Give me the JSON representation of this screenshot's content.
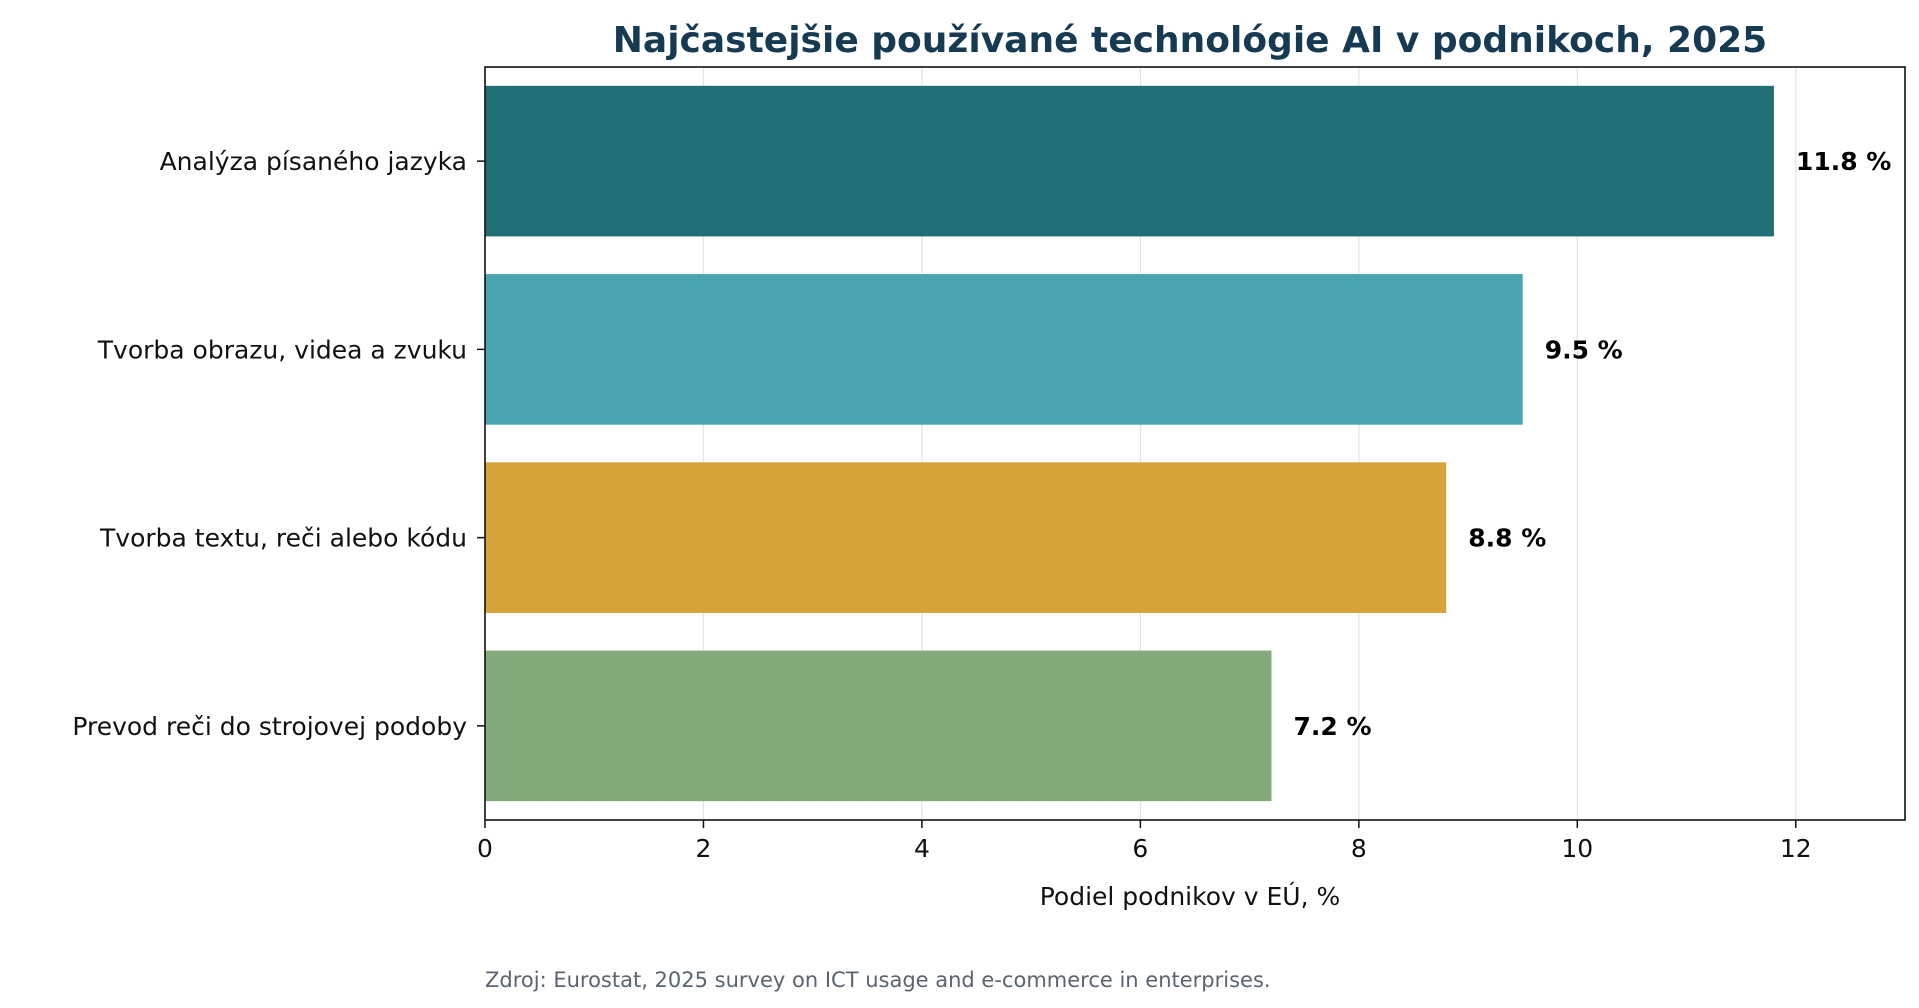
{
  "chart_data": {
    "type": "bar",
    "orientation": "horizontal",
    "title": "Najčastejšie používané technológie AI v podnikoch, 2025",
    "xlabel": "Podiel podnikov v EÚ, %",
    "ylabel": "",
    "xlim": [
      0,
      13
    ],
    "xticks": [
      0,
      2,
      4,
      6,
      8,
      10,
      12
    ],
    "grid": "vertical",
    "categories": [
      "Analýza písaného jazyka",
      "Tvorba obrazu, videa a zvuku",
      "Tvorba textu, reči alebo kódu",
      "Prevod reči do strojovej podoby"
    ],
    "values": [
      11.8,
      9.5,
      8.8,
      7.2
    ],
    "value_labels": [
      "11.8 %",
      "9.5 %",
      "8.8 %",
      "7.2 %"
    ],
    "colors": [
      "#206f77",
      "#4aa5b0",
      "#d6a23a",
      "#84a97a"
    ],
    "source": "Zdroj: Eurostat, 2025 survey on ICT usage and e-commerce in enterprises."
  }
}
